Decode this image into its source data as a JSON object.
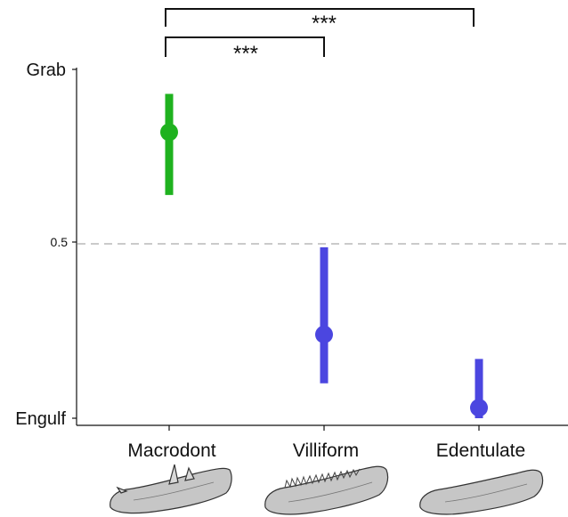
{
  "chart_data": {
    "type": "scatter",
    "title": "",
    "xlabel": "",
    "ylabel": "",
    "ylim": [
      0,
      1
    ],
    "y_end_labels": {
      "top": "Grab",
      "bottom": "Engulf"
    },
    "y_ticks": [
      {
        "value": 0.5,
        "label": "0.5"
      }
    ],
    "reference_line": {
      "value": 0.5,
      "style": "dashed",
      "color": "#aaaaaa"
    },
    "categories": [
      "Macrodont",
      "Villiform",
      "Edentulate"
    ],
    "points": [
      {
        "category": "Macrodont",
        "value": 0.82,
        "lower": 0.64,
        "upper": 0.93,
        "color": "#1fb21f"
      },
      {
        "category": "Villiform",
        "value": 0.24,
        "lower": 0.1,
        "upper": 0.49,
        "color": "#4b46e0"
      },
      {
        "category": "Edentulate",
        "value": 0.03,
        "lower": 0.0,
        "upper": 0.17,
        "color": "#4b46e0"
      }
    ],
    "significance": [
      {
        "from": "Macrodont",
        "to": "Villiform",
        "label": "***"
      },
      {
        "from": "Macrodont",
        "to": "Edentulate",
        "label": "***"
      }
    ],
    "grid": false,
    "legend": "none"
  },
  "icons": [
    "macrodont-jaw-icon",
    "villiform-jaw-icon",
    "edentulate-jaw-icon"
  ]
}
